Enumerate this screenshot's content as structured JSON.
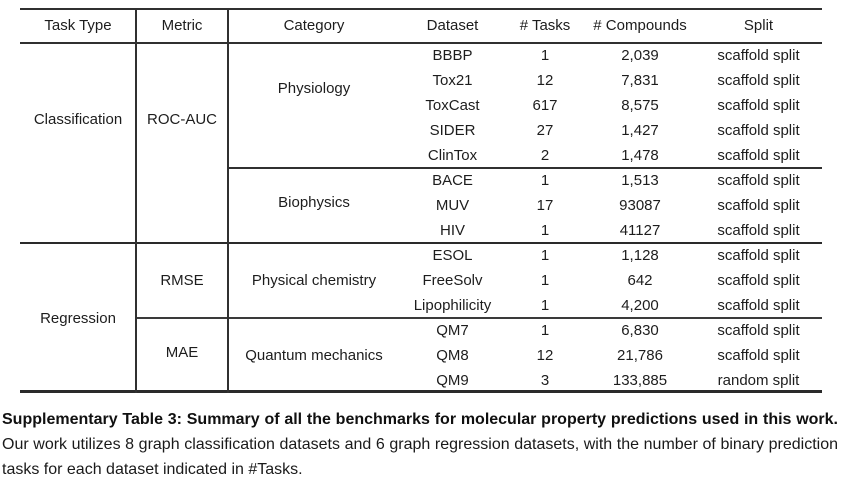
{
  "page": {
    "background": "#ffffff",
    "text_color": "#1d1d1d",
    "line_color": "#303030"
  },
  "table": {
    "columns": [
      "Task Type",
      "Metric",
      "Category",
      "Dataset",
      "# Tasks",
      "# Compounds",
      "Split"
    ],
    "task_types": [
      {
        "label": "Classification",
        "metrics": [
          {
            "label": "ROC-AUC",
            "categories": [
              {
                "label": "Physiology",
                "rows": [
                  {
                    "dataset": "BBBP",
                    "tasks": "1",
                    "compounds": "2,039",
                    "split": "scaffold split"
                  },
                  {
                    "dataset": "Tox21",
                    "tasks": "12",
                    "compounds": "7,831",
                    "split": "scaffold split"
                  },
                  {
                    "dataset": "ToxCast",
                    "tasks": "617",
                    "compounds": "8,575",
                    "split": "scaffold split"
                  },
                  {
                    "dataset": "SIDER",
                    "tasks": "27",
                    "compounds": "1,427",
                    "split": "scaffold split"
                  },
                  {
                    "dataset": "ClinTox",
                    "tasks": "2",
                    "compounds": "1,478",
                    "split": "scaffold split"
                  }
                ]
              },
              {
                "label": "Biophysics",
                "rows": [
                  {
                    "dataset": "BACE",
                    "tasks": "1",
                    "compounds": "1,513",
                    "split": "scaffold split"
                  },
                  {
                    "dataset": "MUV",
                    "tasks": "17",
                    "compounds": "93087",
                    "split": "scaffold split"
                  },
                  {
                    "dataset": "HIV",
                    "tasks": "1",
                    "compounds": "41127",
                    "split": "scaffold split"
                  }
                ]
              }
            ]
          }
        ]
      },
      {
        "label": "Regression",
        "metrics": [
          {
            "label": "RMSE",
            "categories": [
              {
                "label": "Physical chemistry",
                "rows": [
                  {
                    "dataset": "ESOL",
                    "tasks": "1",
                    "compounds": "1,128",
                    "split": "scaffold split"
                  },
                  {
                    "dataset": "FreeSolv",
                    "tasks": "1",
                    "compounds": "642",
                    "split": "scaffold split"
                  },
                  {
                    "dataset": "Lipophilicity",
                    "tasks": "1",
                    "compounds": "4,200",
                    "split": "scaffold split"
                  }
                ]
              }
            ]
          },
          {
            "label": "MAE",
            "categories": [
              {
                "label": "Quantum mechanics",
                "rows": [
                  {
                    "dataset": "QM7",
                    "tasks": "1",
                    "compounds": "6,830",
                    "split": "scaffold split"
                  },
                  {
                    "dataset": "QM8",
                    "tasks": "12",
                    "compounds": "21,786",
                    "split": "scaffold split"
                  },
                  {
                    "dataset": "QM9",
                    "tasks": "3",
                    "compounds": "133,885",
                    "split": "random split"
                  }
                ]
              }
            ]
          }
        ]
      }
    ]
  },
  "caption": {
    "bold": "Supplementary Table 3: Summary of all the benchmarks for molecular property predictions used in this work.",
    "text": "Our work utilizes 8 graph classification datasets and 6 graph regression datasets, with the number of binary prediction tasks for each dataset indicated in #Tasks."
  }
}
